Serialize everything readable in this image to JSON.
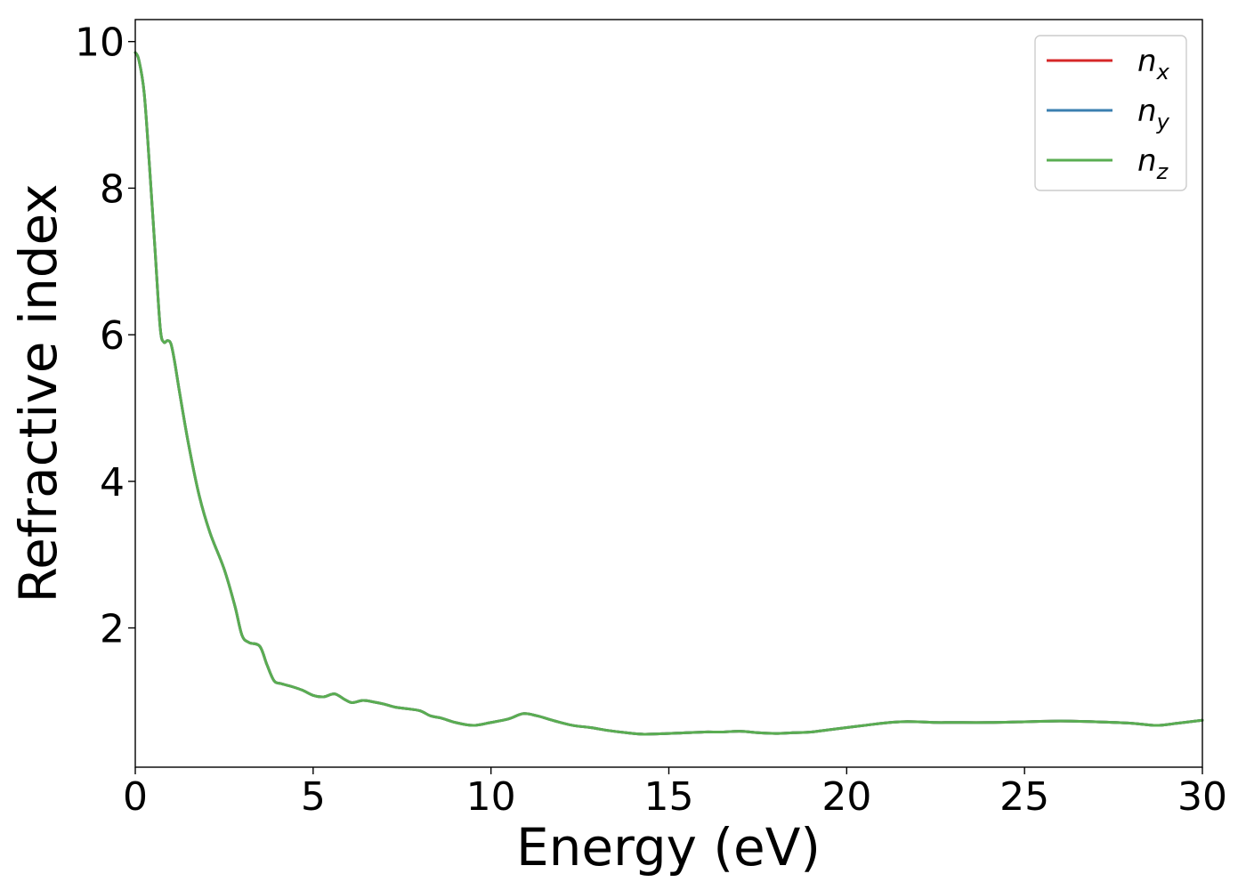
{
  "chart_data": {
    "type": "line",
    "xlabel": "Energy (eV)",
    "ylabel": "Refractive index",
    "xlim": [
      0,
      30
    ],
    "ylim": [
      0.1,
      10.3
    ],
    "x_ticks": [
      0,
      5,
      10,
      15,
      20,
      25,
      30
    ],
    "y_ticks": [
      2,
      4,
      6,
      8,
      10
    ],
    "grid": false,
    "legend_position": "top-right",
    "series": [
      {
        "name": "n_x",
        "symbol": "n",
        "subscript": "x",
        "color": "#d62728",
        "x": [
          0,
          0.1,
          0.25,
          0.4,
          0.55,
          0.7,
          0.8,
          0.9,
          1.0,
          1.1,
          1.25,
          1.5,
          1.8,
          2.1,
          2.5,
          2.8,
          3.0,
          3.2,
          3.5,
          3.7,
          3.9,
          4.1,
          4.4,
          4.7,
          5.0,
          5.3,
          5.6,
          5.9,
          6.1,
          6.4,
          6.7,
          7.0,
          7.3,
          7.6,
          8.0,
          8.3,
          8.6,
          9.0,
          9.5,
          10.0,
          10.5,
          10.9,
          11.3,
          11.8,
          12.3,
          12.8,
          13.3,
          13.8,
          14.3,
          15.0,
          15.5,
          16.0,
          16.5,
          17.0,
          17.5,
          18.0,
          18.5,
          19.0,
          19.5,
          20.0,
          20.5,
          21.0,
          21.5,
          22.0,
          22.5,
          23.0,
          24.0,
          25.0,
          26.0,
          27.0,
          28.0,
          28.7,
          29.3,
          30.0
        ],
        "values": [
          9.85,
          9.75,
          9.3,
          8.3,
          7.2,
          6.1,
          5.9,
          5.92,
          5.88,
          5.65,
          5.2,
          4.5,
          3.8,
          3.3,
          2.8,
          2.3,
          1.9,
          1.8,
          1.75,
          1.5,
          1.28,
          1.24,
          1.2,
          1.15,
          1.08,
          1.06,
          1.1,
          1.02,
          0.98,
          1.01,
          0.99,
          0.96,
          0.92,
          0.9,
          0.87,
          0.8,
          0.77,
          0.71,
          0.67,
          0.71,
          0.76,
          0.83,
          0.8,
          0.73,
          0.67,
          0.64,
          0.6,
          0.57,
          0.55,
          0.56,
          0.57,
          0.58,
          0.58,
          0.59,
          0.57,
          0.56,
          0.57,
          0.58,
          0.61,
          0.64,
          0.67,
          0.7,
          0.72,
          0.72,
          0.71,
          0.71,
          0.71,
          0.72,
          0.73,
          0.72,
          0.7,
          0.67,
          0.7,
          0.74
        ]
      },
      {
        "name": "n_y",
        "symbol": "n",
        "subscript": "y",
        "color": "#3b7fb0",
        "x": [
          0,
          0.1,
          0.25,
          0.4,
          0.55,
          0.7,
          0.8,
          0.9,
          1.0,
          1.1,
          1.25,
          1.5,
          1.8,
          2.1,
          2.5,
          2.8,
          3.0,
          3.2,
          3.5,
          3.7,
          3.9,
          4.1,
          4.4,
          4.7,
          5.0,
          5.3,
          5.6,
          5.9,
          6.1,
          6.4,
          6.7,
          7.0,
          7.3,
          7.6,
          8.0,
          8.3,
          8.6,
          9.0,
          9.5,
          10.0,
          10.5,
          10.9,
          11.3,
          11.8,
          12.3,
          12.8,
          13.3,
          13.8,
          14.3,
          15.0,
          15.5,
          16.0,
          16.5,
          17.0,
          17.5,
          18.0,
          18.5,
          19.0,
          19.5,
          20.0,
          20.5,
          21.0,
          21.5,
          22.0,
          22.5,
          23.0,
          24.0,
          25.0,
          26.0,
          27.0,
          28.0,
          28.7,
          29.3,
          30.0
        ],
        "values": [
          9.85,
          9.75,
          9.3,
          8.3,
          7.2,
          6.1,
          5.9,
          5.92,
          5.88,
          5.65,
          5.2,
          4.5,
          3.8,
          3.3,
          2.8,
          2.3,
          1.9,
          1.8,
          1.75,
          1.5,
          1.28,
          1.24,
          1.2,
          1.15,
          1.08,
          1.06,
          1.1,
          1.02,
          0.98,
          1.01,
          0.99,
          0.96,
          0.92,
          0.9,
          0.87,
          0.8,
          0.77,
          0.71,
          0.67,
          0.71,
          0.76,
          0.83,
          0.8,
          0.73,
          0.67,
          0.64,
          0.6,
          0.57,
          0.55,
          0.56,
          0.57,
          0.58,
          0.58,
          0.59,
          0.57,
          0.56,
          0.57,
          0.58,
          0.61,
          0.64,
          0.67,
          0.7,
          0.72,
          0.72,
          0.71,
          0.71,
          0.71,
          0.72,
          0.73,
          0.72,
          0.7,
          0.67,
          0.7,
          0.74
        ]
      },
      {
        "name": "n_z",
        "symbol": "n",
        "subscript": "z",
        "color": "#5aad52",
        "x": [
          0,
          0.1,
          0.25,
          0.4,
          0.55,
          0.7,
          0.8,
          0.9,
          1.0,
          1.1,
          1.25,
          1.5,
          1.8,
          2.1,
          2.5,
          2.8,
          3.0,
          3.2,
          3.5,
          3.7,
          3.9,
          4.1,
          4.4,
          4.7,
          5.0,
          5.3,
          5.6,
          5.9,
          6.1,
          6.4,
          6.7,
          7.0,
          7.3,
          7.6,
          8.0,
          8.3,
          8.6,
          9.0,
          9.5,
          10.0,
          10.5,
          10.9,
          11.3,
          11.8,
          12.3,
          12.8,
          13.3,
          13.8,
          14.3,
          15.0,
          15.5,
          16.0,
          16.5,
          17.0,
          17.5,
          18.0,
          18.5,
          19.0,
          19.5,
          20.0,
          20.5,
          21.0,
          21.5,
          22.0,
          22.5,
          23.0,
          24.0,
          25.0,
          26.0,
          27.0,
          28.0,
          28.7,
          29.3,
          30.0
        ],
        "values": [
          9.85,
          9.75,
          9.3,
          8.3,
          7.2,
          6.1,
          5.9,
          5.92,
          5.88,
          5.65,
          5.2,
          4.5,
          3.8,
          3.3,
          2.8,
          2.3,
          1.9,
          1.8,
          1.75,
          1.5,
          1.28,
          1.24,
          1.2,
          1.15,
          1.08,
          1.06,
          1.1,
          1.02,
          0.98,
          1.01,
          0.99,
          0.96,
          0.92,
          0.9,
          0.87,
          0.8,
          0.77,
          0.71,
          0.67,
          0.71,
          0.76,
          0.83,
          0.8,
          0.73,
          0.67,
          0.64,
          0.6,
          0.57,
          0.55,
          0.56,
          0.57,
          0.58,
          0.58,
          0.59,
          0.57,
          0.56,
          0.57,
          0.58,
          0.61,
          0.64,
          0.67,
          0.7,
          0.72,
          0.72,
          0.71,
          0.71,
          0.71,
          0.72,
          0.73,
          0.72,
          0.7,
          0.67,
          0.7,
          0.74
        ]
      }
    ]
  }
}
